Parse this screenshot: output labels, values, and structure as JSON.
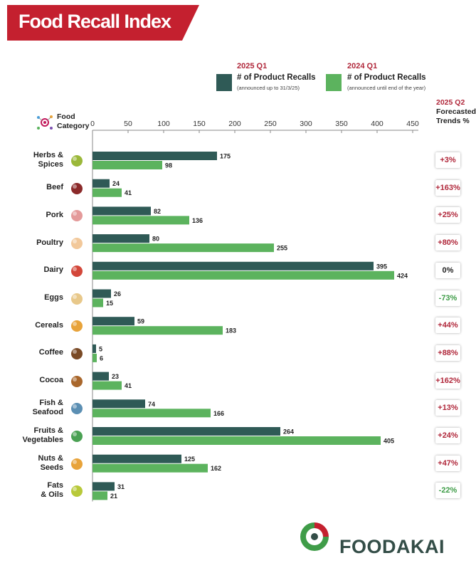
{
  "title": "Food Recall Index",
  "legend": {
    "series1": {
      "year": "2025 Q1",
      "title": "# of Product Recalls",
      "note": "(announced up to 31/3/25)",
      "color": "#2f5a56"
    },
    "series2": {
      "year": "2024 Q1",
      "title": "# of Product Recalls",
      "note": "(announced until end of the year)",
      "color": "#5cb35e"
    }
  },
  "category_header": {
    "line1": "Food",
    "line2": "Category"
  },
  "forecast_header": {
    "line1": "2025 Q2",
    "line2": "Forecasted",
    "line3": "Trends %"
  },
  "brand": "FOODAKAI",
  "colors": {
    "banner": "#c4202f",
    "positive": "#b0273a",
    "negative": "#3f9c48",
    "neutral": "#222222",
    "axis": "#8a8a8a"
  },
  "icons": [
    "herbs-spices-icon",
    "beef-icon",
    "pork-icon",
    "poultry-icon",
    "dairy-icon",
    "eggs-icon",
    "cereals-icon",
    "coffee-icon",
    "cocoa-icon",
    "fish-seafood-icon",
    "fruits-vegetables-icon",
    "nuts-seeds-icon",
    "fats-oils-icon"
  ],
  "rows": [
    {
      "label": [
        "Herbs &",
        "Spices"
      ],
      "forecast": "+3%",
      "trend": "positive"
    },
    {
      "label": [
        "Beef"
      ],
      "forecast": "+163%",
      "trend": "positive"
    },
    {
      "label": [
        "Pork"
      ],
      "forecast": "+25%",
      "trend": "positive"
    },
    {
      "label": [
        "Poultry"
      ],
      "forecast": "+80%",
      "trend": "positive"
    },
    {
      "label": [
        "Dairy"
      ],
      "forecast": "0%",
      "trend": "neutral"
    },
    {
      "label": [
        "Eggs"
      ],
      "forecast": "-73%",
      "trend": "negative"
    },
    {
      "label": [
        "Cereals"
      ],
      "forecast": "+44%",
      "trend": "positive"
    },
    {
      "label": [
        "Coffee"
      ],
      "forecast": "+88%",
      "trend": "positive"
    },
    {
      "label": [
        "Cocoa"
      ],
      "forecast": "+162%",
      "trend": "positive"
    },
    {
      "label": [
        "Fish &",
        "Seafood"
      ],
      "forecast": "+13%",
      "trend": "positive"
    },
    {
      "label": [
        "Fruits &",
        "Vegetables"
      ],
      "forecast": "+24%",
      "trend": "positive"
    },
    {
      "label": [
        "Nuts &",
        "Seeds"
      ],
      "forecast": "+47%",
      "trend": "positive"
    },
    {
      "label": [
        "Fats",
        "& Oils"
      ],
      "forecast": "-22%",
      "trend": "negative"
    }
  ],
  "chart_data": {
    "type": "bar",
    "orientation": "horizontal",
    "categories": [
      "Herbs & Spices",
      "Beef",
      "Pork",
      "Poultry",
      "Dairy",
      "Eggs",
      "Cereals",
      "Coffee",
      "Cocoa",
      "Fish & Seafood",
      "Fruits & Vegetables",
      "Nuts & Seeds",
      "Fats & Oils"
    ],
    "series": [
      {
        "name": "2025 Q1 # of Product Recalls",
        "values": [
          175,
          24,
          82,
          80,
          395,
          26,
          59,
          5,
          23,
          74,
          264,
          125,
          31
        ]
      },
      {
        "name": "2024 Q1 # of Product Recalls",
        "values": [
          98,
          41,
          136,
          255,
          424,
          15,
          183,
          6,
          41,
          166,
          405,
          162,
          21
        ]
      }
    ],
    "xticks": [
      0,
      50,
      100,
      150,
      200,
      250,
      300,
      350,
      400,
      450
    ],
    "xlim": [
      0,
      450
    ],
    "grid": false,
    "legend_position": "top"
  }
}
